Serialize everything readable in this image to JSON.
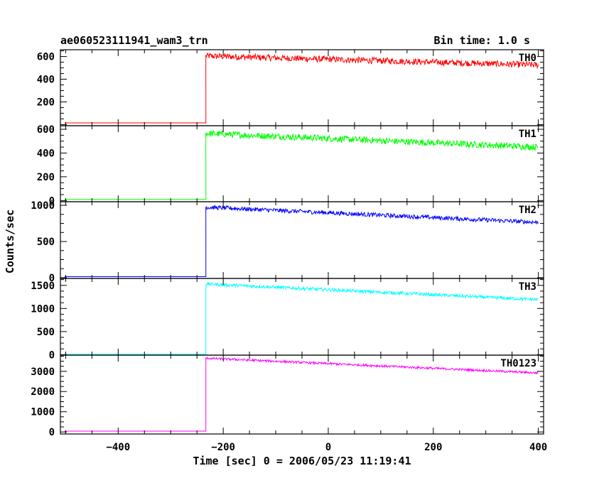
{
  "header": {
    "left": "ae060523111941_wam3_trn",
    "right": "Bin time: 1.0 s"
  },
  "xlabel": "Time [sec] 0 = 2006/05/23 11:19:41",
  "ylabel": "Counts/sec",
  "chart_data": {
    "type": "line",
    "x_range": [
      -510,
      410
    ],
    "x_ticks": [
      -400,
      -200,
      0,
      200,
      400
    ],
    "trigger_x": -233,
    "x_end": 400,
    "panels": [
      {
        "name": "TH0",
        "color": "#ff0000",
        "ylim": [
          -10,
          660
        ],
        "yticks": [
          200,
          400,
          600
        ],
        "background": 15,
        "peak": 605,
        "end": 525,
        "noise": 28
      },
      {
        "name": "TH1",
        "color": "#00ff00",
        "ylim": [
          -10,
          630
        ],
        "yticks": [
          0,
          200,
          400,
          600
        ],
        "background": 10,
        "peak": 565,
        "end": 450,
        "noise": 28
      },
      {
        "name": "TH2",
        "color": "#0000ff",
        "ylim": [
          -10,
          1050
        ],
        "yticks": [
          0,
          500,
          1000
        ],
        "background": 15,
        "peak": 975,
        "end": 765,
        "noise": 30
      },
      {
        "name": "TH3",
        "color": "#00ffff",
        "ylim": [
          -10,
          1650
        ],
        "yticks": [
          0,
          500,
          1000,
          1500
        ],
        "background": 10,
        "peak": 1530,
        "end": 1190,
        "noise": 35
      },
      {
        "name": "TH0123",
        "color": "#ff00ff",
        "ylim": [
          -100,
          3800
        ],
        "yticks": [
          0,
          1000,
          2000,
          3000
        ],
        "background": 40,
        "peak": 3650,
        "end": 2920,
        "noise": 55
      }
    ]
  }
}
